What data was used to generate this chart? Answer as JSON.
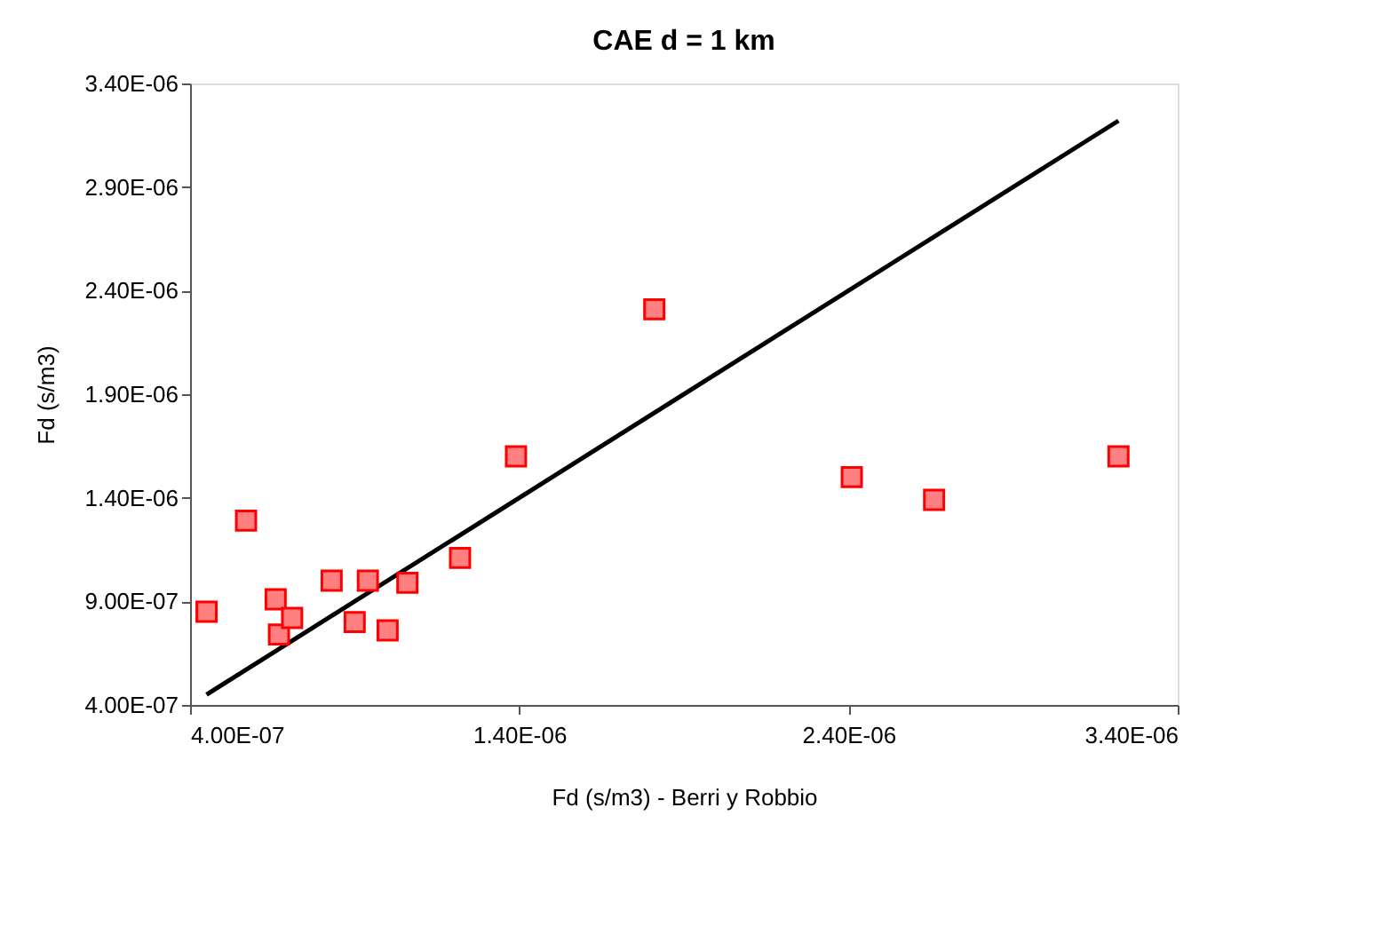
{
  "chart_data": {
    "type": "scatter",
    "title": "CAE d = 1 km",
    "xlabel": "Fd (s/m3) - Berri y Robbio",
    "ylabel": "Fd (s/m3)",
    "xlim": [
      4e-07,
      3.4e-06
    ],
    "xticks": [
      {
        "value": 4e-07,
        "label": "4.00E-07"
      },
      {
        "value": 1.4e-06,
        "label": "1.40E-06"
      },
      {
        "value": 2.4e-06,
        "label": "2.40E-06"
      },
      {
        "value": 3.4e-06,
        "label": "3.40E-06"
      }
    ],
    "ylim": [
      4e-07,
      3.4e-06
    ],
    "yticks": [
      {
        "value": 4e-07,
        "label": "4.00E-07"
      },
      {
        "value": 9e-07,
        "label": "9.00E-07"
      },
      {
        "value": 1.4e-06,
        "label": "1.40E-06"
      },
      {
        "value": 1.9e-06,
        "label": "1.90E-06"
      },
      {
        "value": 2.4e-06,
        "label": "2.40E-06"
      },
      {
        "value": 2.9e-06,
        "label": "2.90E-06"
      },
      {
        "value": 3.4e-06,
        "label": "3.40E-06"
      }
    ],
    "grid": false,
    "marker": "square",
    "series": [
      {
        "color": "#ff8080",
        "x": [
          4.5e-07,
          5.7e-07,
          6.6e-07,
          6.7e-07,
          7.1e-07,
          8.3e-07,
          9e-07,
          9.4e-07,
          1e-06,
          1.06e-06,
          1.22e-06,
          1.39e-06,
          1.81e-06,
          2.41e-06,
          2.66e-06,
          3.22e-06
        ],
        "values": [
          8.5e-07,
          1.29e-06,
          9.1e-07,
          7.4e-07,
          8.2e-07,
          1e-06,
          8e-07,
          1e-06,
          7.6e-07,
          9.9e-07,
          1.11e-06,
          1.6e-06,
          2.31e-06,
          1.5e-06,
          1.39e-06,
          1.6e-06
        ]
      },
      {
        "type": "line",
        "color": "#000000",
        "line_style": "solid",
        "marker": "none",
        "x": [
          4.5e-07,
          3.22e-06
        ],
        "values": [
          4.5e-07,
          3.22e-06
        ]
      }
    ]
  }
}
